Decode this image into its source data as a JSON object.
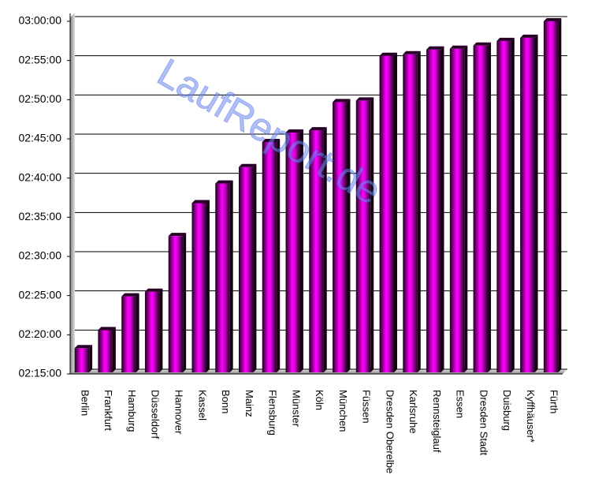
{
  "chart_data": {
    "type": "bar",
    "watermark": "LaufReport.de",
    "categories": [
      "Berlin",
      "Frankfurt",
      "Hamburg",
      "Düsseldorf",
      "Hannover",
      "Kassel",
      "Bonn",
      "Mainz",
      "Flensburg",
      "Münster",
      "Köln",
      "München",
      "Füssen",
      "Dresden Oberelbe",
      "Karlsruhe",
      "Rennsteiglauf",
      "Essen",
      "Dresden Stadt",
      "Duisburg",
      "Kyffhäuser*",
      "Fürth"
    ],
    "values": [
      138.3,
      140.6,
      144.9,
      145.5,
      152.6,
      156.8,
      159.3,
      161.4,
      164.6,
      165.8,
      166.1,
      169.7,
      169.9,
      175.6,
      175.8,
      176.4,
      176.5,
      176.9,
      177.5,
      177.9,
      180
    ],
    "color": "#ff00ff",
    "ylim": [
      135,
      180
    ],
    "yticks": [
      {
        "value": 135,
        "label": "02:15:00"
      },
      {
        "value": 140,
        "label": "02:20:00"
      },
      {
        "value": 145,
        "label": "02:25:00"
      },
      {
        "value": 150,
        "label": "02:30:00"
      },
      {
        "value": 155,
        "label": "02:35:00"
      },
      {
        "value": 160,
        "label": "02:40:00"
      },
      {
        "value": 165,
        "label": "02:45:00"
      },
      {
        "value": 170,
        "label": "02:50:00"
      },
      {
        "value": 175,
        "label": "02:55:00"
      },
      {
        "value": 180,
        "label": "03:00:00"
      }
    ],
    "grid": true
  }
}
